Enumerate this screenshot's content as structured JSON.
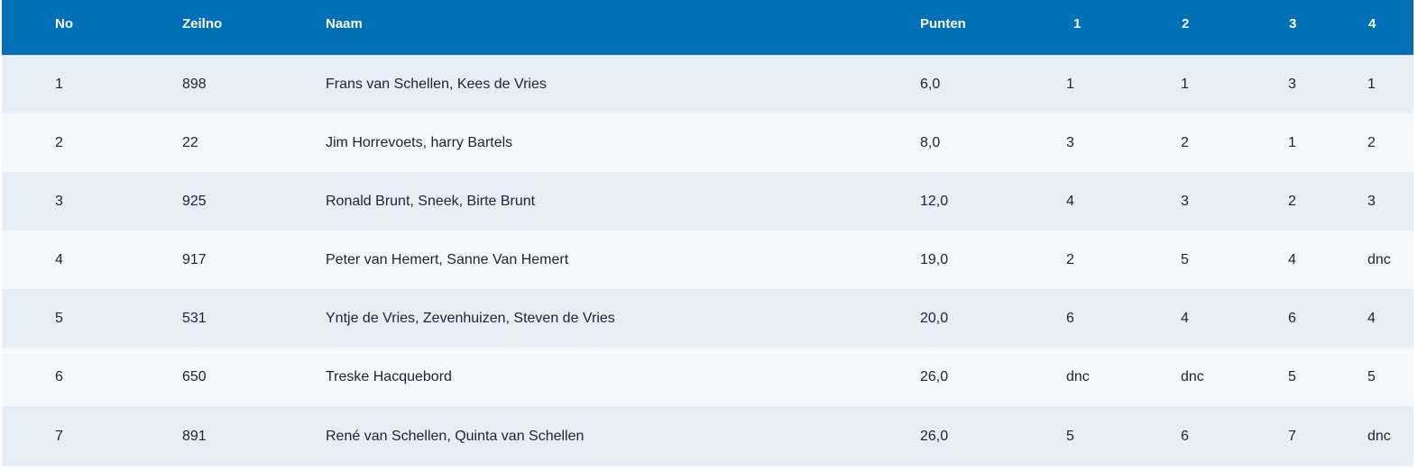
{
  "table": {
    "headers": [
      "No",
      "Zeilno",
      "Naam",
      "Punten",
      "1",
      "2",
      "3",
      "4"
    ],
    "rows": [
      [
        "1",
        "898",
        "Frans van Schellen, Kees de Vries",
        "6,0",
        "1",
        "1",
        "3",
        "1"
      ],
      [
        "2",
        "22",
        "Jim Horrevoets, harry Bartels",
        "8,0",
        "3",
        "2",
        "1",
        "2"
      ],
      [
        "3",
        "925",
        "Ronald Brunt, Sneek, Birte Brunt",
        "12,0",
        "4",
        "3",
        "2",
        "3"
      ],
      [
        "4",
        "917",
        "Peter van Hemert, Sanne Van Hemert",
        "19,0",
        "2",
        "5",
        "4",
        "dnc"
      ],
      [
        "5",
        "531",
        "Yntje de Vries, Zevenhuizen, Steven de Vries",
        "20,0",
        "6",
        "4",
        "6",
        "4"
      ],
      [
        "6",
        "650",
        "Treske Hacquebord",
        "26,0",
        "dnc",
        "dnc",
        "5",
        "5"
      ],
      [
        "7",
        "891",
        "René van Schellen, Quinta van Schellen",
        "26,0",
        "5",
        "6",
        "7",
        "dnc"
      ]
    ]
  },
  "colors": {
    "header_bg": "#0270b7",
    "row_odd_bg": "#e6eff6",
    "row_even_bg": "#f4f9fd",
    "text": "#1b2430"
  }
}
